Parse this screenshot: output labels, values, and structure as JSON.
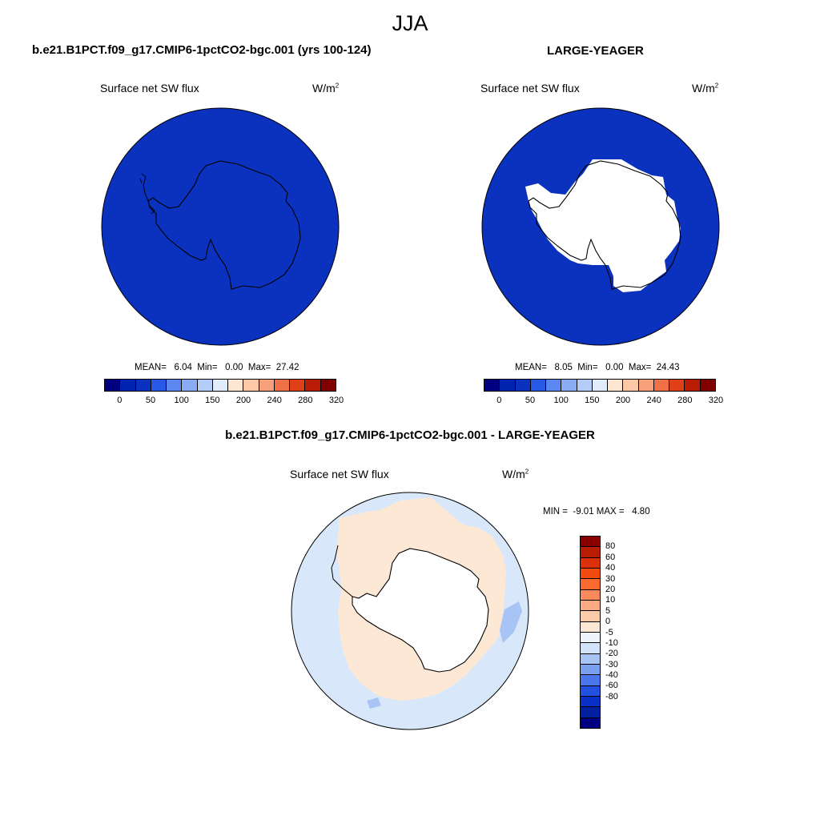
{
  "main_title": "JJA",
  "panels": [
    {
      "title": "b.e21.B1PCT.f09_g17.CMIP6-1pctCO2-bgc.001 (yrs 100-124)",
      "variable": "Surface net SW flux",
      "unit_base": "W/m",
      "unit_exp": "2",
      "stats": "MEAN=   6.04  Min=   0.00  Max=  27.42",
      "ocean_color": "#0a32be"
    },
    {
      "title": "LARGE-YEAGER",
      "variable": "Surface net SW flux",
      "unit_base": "W/m",
      "unit_exp": "2",
      "stats": "MEAN=   8.05  Min=   0.00  Max=  24.43",
      "ocean_color": "#0a32be"
    }
  ],
  "colorbar_top": {
    "colors": [
      "#000080",
      "#0024b0",
      "#0a32be",
      "#2858e6",
      "#5a88f0",
      "#8aacf4",
      "#b4ccf8",
      "#e0ecfc",
      "#fde6d2",
      "#fcc8a6",
      "#f8a07a",
      "#f07048",
      "#e04018",
      "#b81c04",
      "#800000"
    ],
    "labels": [
      "0",
      "50",
      "100",
      "150",
      "200",
      "240",
      "280",
      "320"
    ]
  },
  "diff_panel": {
    "title": "b.e21.B1PCT.f09_g17.CMIP6-1pctCO2-bgc.001 - LARGE-YEAGER",
    "variable": "Surface net SW flux",
    "unit_base": "W/m",
    "unit_exp": "2",
    "stats": "MIN =  -9.01 MAX =   4.80",
    "pos_color": "#fde8d6",
    "neg_color": "#d8e8fa",
    "blob_color": "#a8c4f4"
  },
  "colorbar_diff": {
    "colors": [
      "#8a0000",
      "#b81c04",
      "#dc3008",
      "#f04a10",
      "#fa6a30",
      "#fb8a5a",
      "#fcaa84",
      "#fdcaaa",
      "#fde8d6",
      "#eef4fc",
      "#d2e2fa",
      "#a8c4f4",
      "#7aa0f0",
      "#4a78ec",
      "#2250e0",
      "#0a30c8",
      "#0020a0",
      "#000080"
    ],
    "labels": [
      "80",
      "60",
      "40",
      "30",
      "20",
      "10",
      "5",
      "0",
      "-5",
      "-10",
      "-20",
      "-30",
      "-40",
      "-60",
      "-80"
    ]
  }
}
